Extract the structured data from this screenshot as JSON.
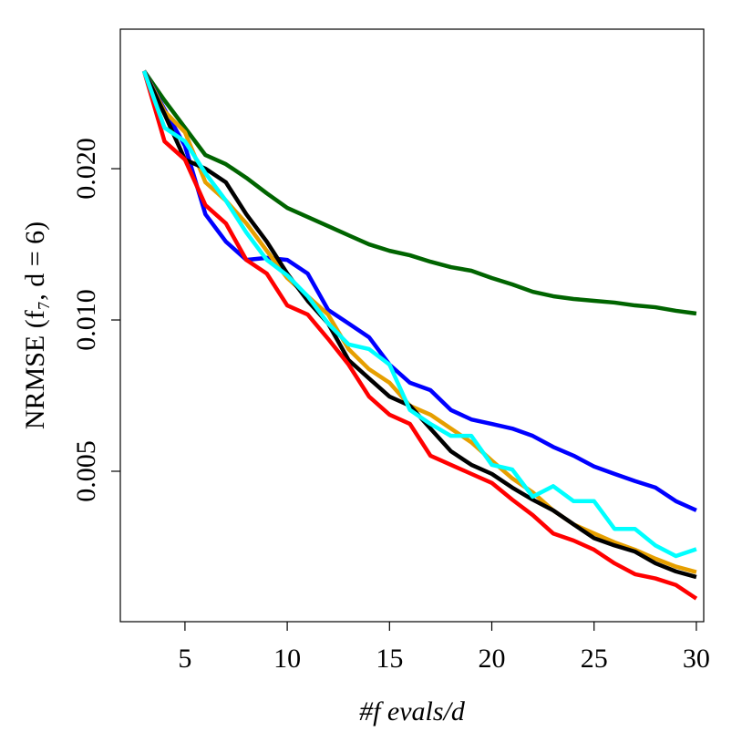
{
  "chart_data": {
    "type": "line",
    "xlabel": "#f evals/d",
    "ylabel": "NRMSE (f₇, d = 6)",
    "x": [
      3,
      4,
      5,
      6,
      7,
      8,
      9,
      10,
      11,
      12,
      13,
      14,
      15,
      16,
      17,
      18,
      19,
      20,
      21,
      22,
      23,
      24,
      25,
      26,
      27,
      28,
      29,
      30
    ],
    "xlim": [
      1.84,
      30.36
    ],
    "xticks": [
      5,
      10,
      15,
      20,
      25,
      30
    ],
    "ylim": [
      0.00251,
      0.0379
    ],
    "ylog": true,
    "yticks": [
      0.005,
      {
        "value": 0.01,
        "label": "0.010"
      },
      {
        "value": 0.02,
        "label": "0.020"
      }
    ],
    "series": [
      {
        "color": "#006400",
        "values": [
          0.0313,
          0.02735,
          0.02413,
          0.02129,
          0.02042,
          0.01918,
          0.01787,
          0.01671,
          0.01603,
          0.01537,
          0.01474,
          0.01414,
          0.01373,
          0.01345,
          0.01306,
          0.01274,
          0.01253,
          0.01212,
          0.01177,
          0.01138,
          0.01115,
          0.01101,
          0.01092,
          0.01083,
          0.01069,
          0.0106,
          0.01043,
          0.0103
        ]
      },
      {
        "color": "#0000ff",
        "values": [
          0.0313,
          0.02624,
          0.0222,
          0.01623,
          0.01432,
          0.01317,
          0.01329,
          0.01317,
          0.01237,
          0.01047,
          0.00984,
          0.00924,
          0.00815,
          0.0075,
          0.00725,
          0.00662,
          0.00634,
          0.00621,
          0.00608,
          0.00588,
          0.00559,
          0.00537,
          0.00511,
          0.00494,
          0.00478,
          0.00464,
          0.00436,
          0.00418
        ]
      },
      {
        "color": "#e69f00",
        "values": [
          0.0313,
          0.02602,
          0.02364,
          0.01879,
          0.01728,
          0.01557,
          0.01373,
          0.01212,
          0.01115,
          0.01025,
          0.00875,
          0.00798,
          0.0075,
          0.00675,
          0.00648,
          0.00608,
          0.00571,
          0.00525,
          0.00484,
          0.00454,
          0.00418,
          0.00392,
          0.00376,
          0.00361,
          0.00349,
          0.00335,
          0.00323,
          0.00315
        ]
      },
      {
        "color": "#000000",
        "values": [
          0.0313,
          0.02569,
          0.02085,
          0.02,
          0.01879,
          0.01623,
          0.01432,
          0.01237,
          0.01092,
          0.00984,
          0.00832,
          0.00765,
          0.00704,
          0.00675,
          0.00608,
          0.00548,
          0.00515,
          0.00494,
          0.00464,
          0.00439,
          0.00418,
          0.00392,
          0.00368,
          0.00356,
          0.00346,
          0.00328,
          0.00316,
          0.00308
        ]
      },
      {
        "color": "#ff0000",
        "values": [
          0.0313,
          0.02267,
          0.02085,
          0.01692,
          0.01557,
          0.01317,
          0.01237,
          0.01069,
          0.01025,
          0.00917,
          0.00815,
          0.00704,
          0.00648,
          0.00621,
          0.00537,
          0.00515,
          0.00494,
          0.00474,
          0.00439,
          0.00409,
          0.00376,
          0.00364,
          0.00349,
          0.00328,
          0.00312,
          0.00306,
          0.00297,
          0.00279
        ]
      },
      {
        "color": "#00ffff",
        "values": [
          0.0313,
          0.02413,
          0.02267,
          0.01959,
          0.01728,
          0.01493,
          0.01317,
          0.01227,
          0.01115,
          0.00984,
          0.00894,
          0.00875,
          0.00815,
          0.00662,
          0.00621,
          0.00588,
          0.00588,
          0.00515,
          0.00504,
          0.00445,
          0.00467,
          0.00436,
          0.00436,
          0.00384,
          0.00384,
          0.00356,
          0.00339,
          0.0035
        ]
      }
    ]
  }
}
